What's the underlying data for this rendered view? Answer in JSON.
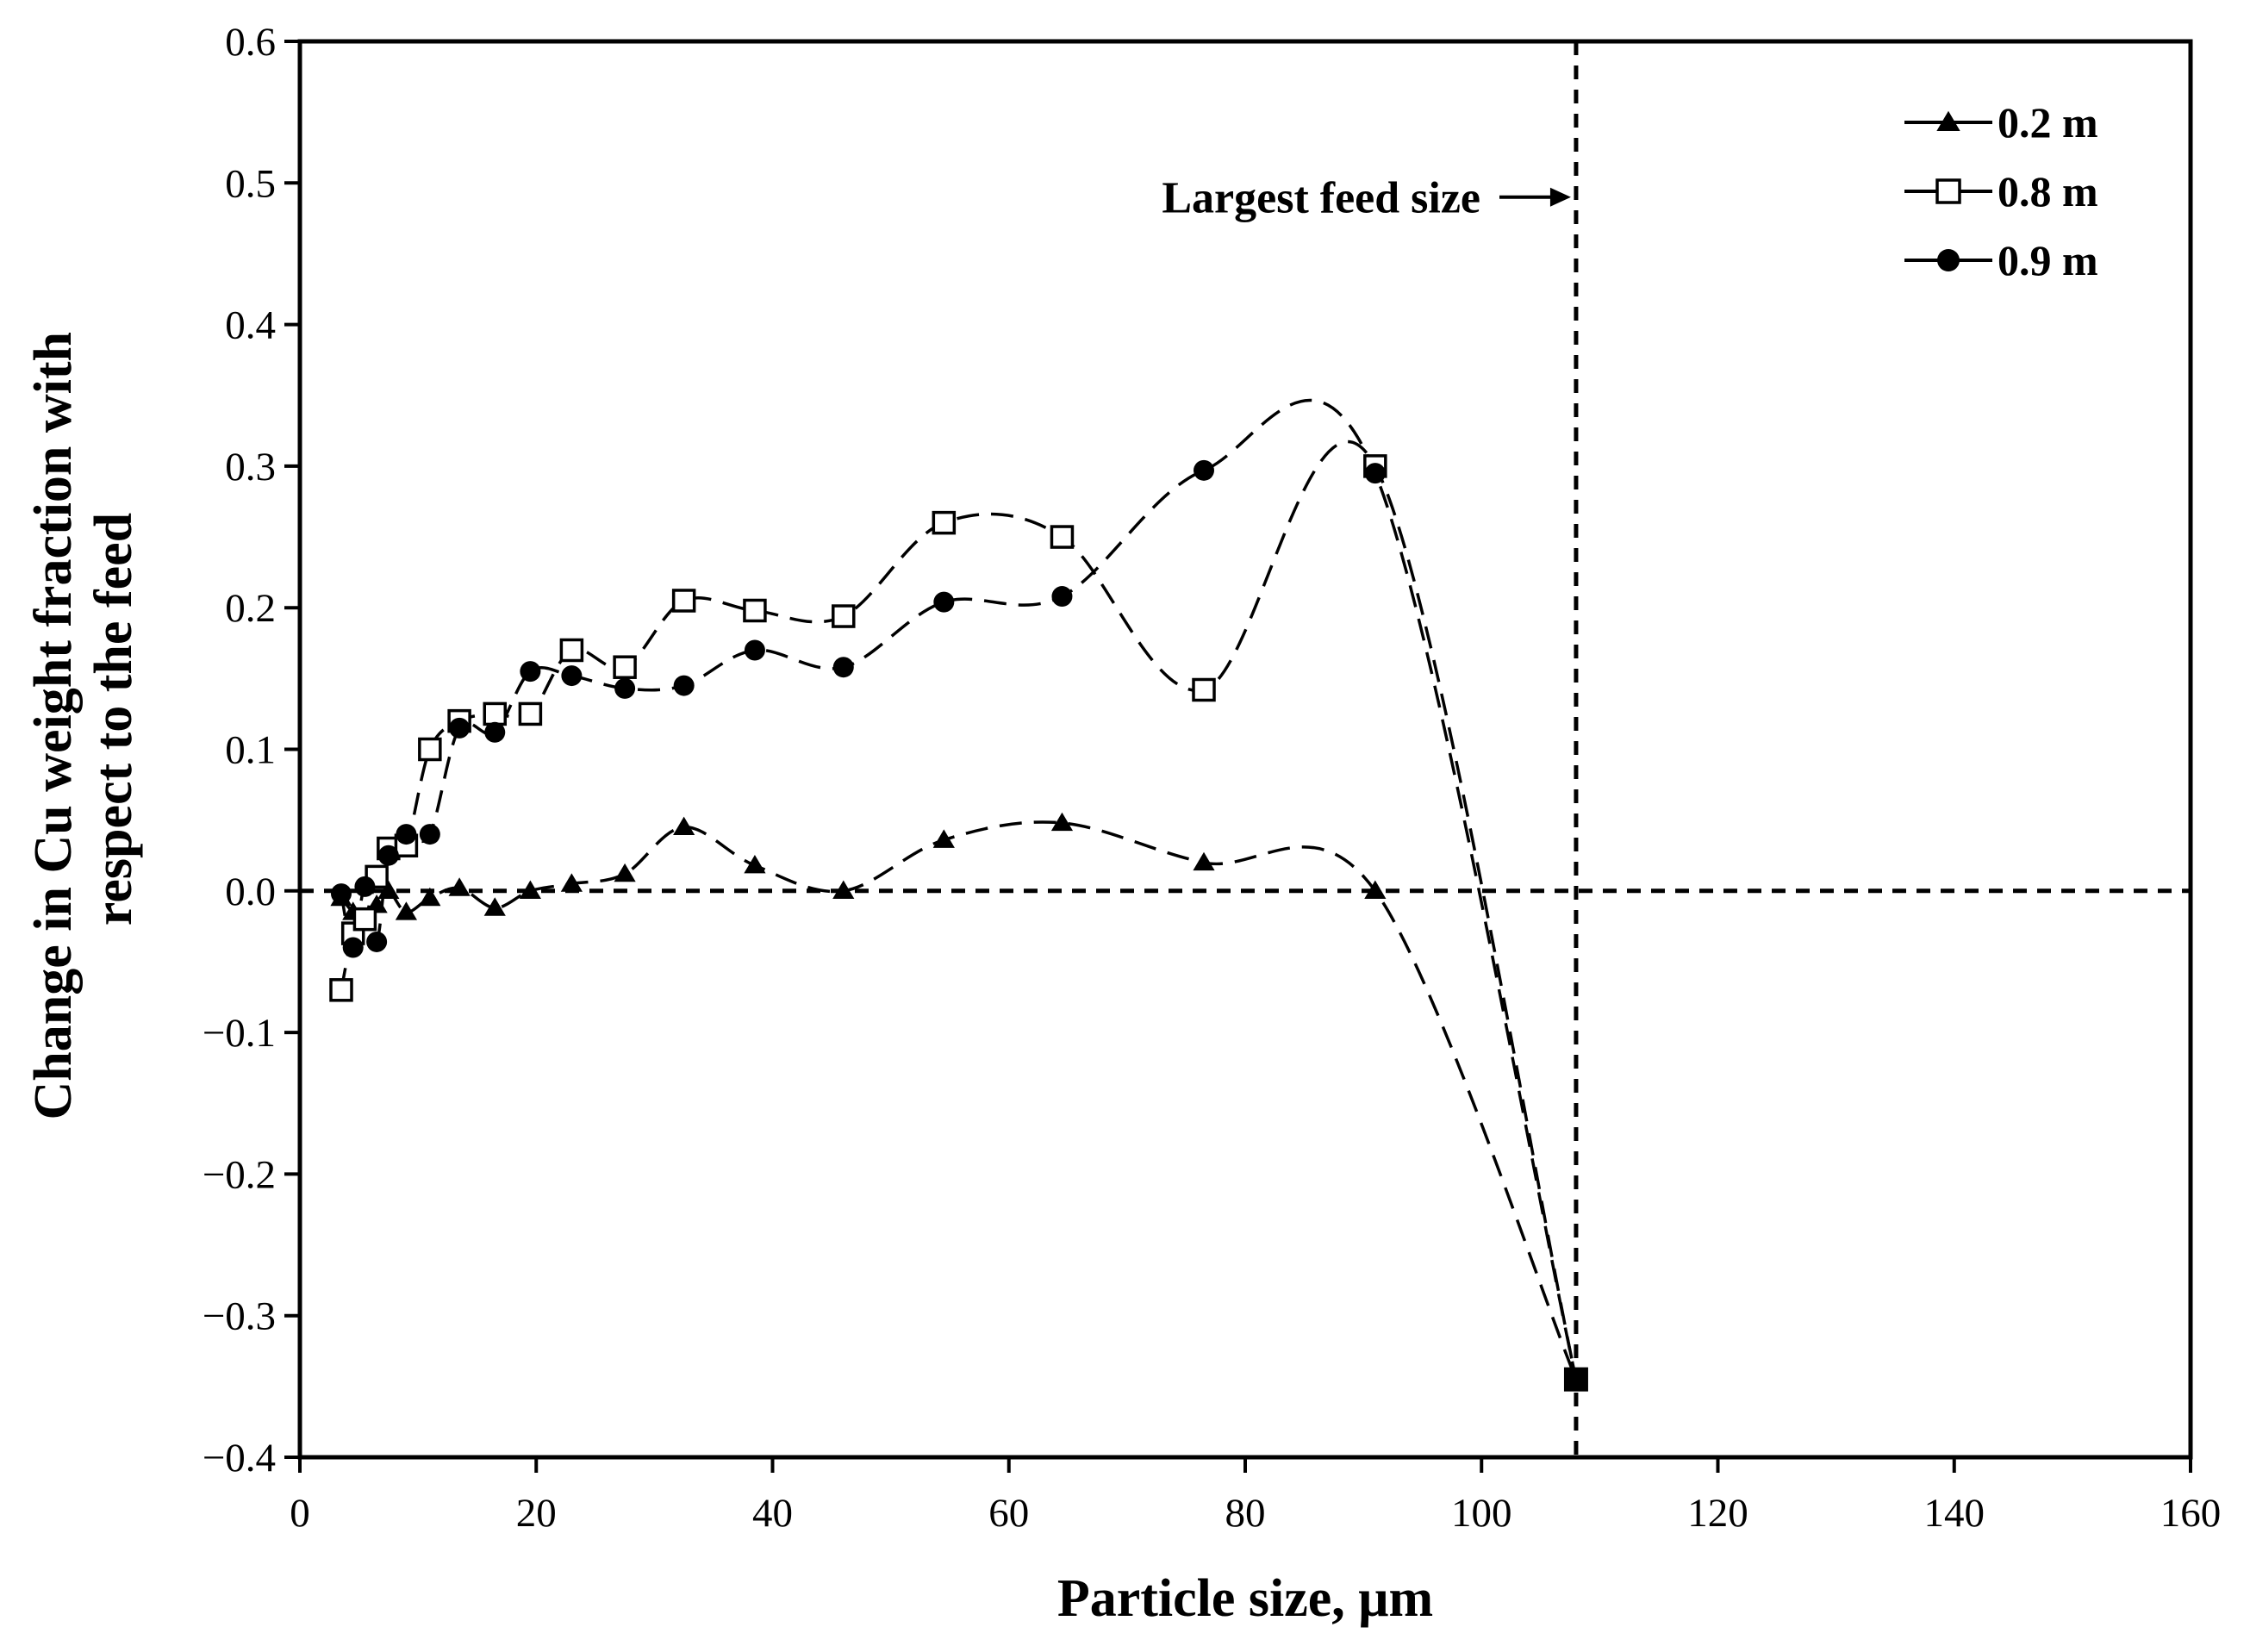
{
  "chart_data": {
    "type": "line",
    "title": "",
    "xlabel": "Particle size, μm",
    "ylabel": "Change in Cu weight fraction with respect to the feed",
    "ylabel_lines": [
      "Change in Cu weight fraction with",
      "respect to the feed"
    ],
    "xlim": [
      0,
      160
    ],
    "ylim": [
      -0.4,
      0.6
    ],
    "x_ticks": [
      0,
      20,
      40,
      60,
      80,
      100,
      120,
      140,
      160
    ],
    "x_tick_labels": [
      "0",
      "20",
      "40",
      "60",
      "80",
      "100",
      "120",
      "140",
      "160"
    ],
    "y_ticks": [
      -0.4,
      -0.3,
      -0.2,
      -0.1,
      0.0,
      0.1,
      0.2,
      0.3,
      0.4,
      0.5,
      0.6
    ],
    "y_tick_labels": [
      "−0.4",
      "−0.3",
      "−0.2",
      "−0.1",
      "0.0",
      "0.1",
      "0.2",
      "0.3",
      "0.4",
      "0.5",
      "0.6"
    ],
    "grid": false,
    "legend_position": "top-right",
    "reference_lines": {
      "horizontal_y": 0.0,
      "vertical_x": 108
    },
    "annotation": {
      "text": "Largest feed size",
      "points_to_x": 108,
      "y": 0.49
    },
    "series": [
      {
        "name": "0.2 m",
        "marker": "triangle-filled",
        "x": [
          3.5,
          4.5,
          5.5,
          6.5,
          7.5,
          9,
          11,
          13.5,
          16.5,
          19.5,
          23,
          27.5,
          32.5,
          38.5,
          46,
          54.5,
          64.5,
          76.5,
          91,
          108
        ],
        "y": [
          -0.005,
          -0.015,
          -0.02,
          -0.01,
          0.0,
          -0.015,
          -0.005,
          0.002,
          -0.012,
          0.0,
          0.005,
          0.012,
          0.045,
          0.018,
          0.0,
          0.036,
          0.048,
          0.02,
          0.0,
          -0.345
        ]
      },
      {
        "name": "0.8 m",
        "marker": "square-open",
        "x": [
          3.5,
          4.5,
          5.5,
          6.5,
          7.5,
          9,
          11,
          13.5,
          16.5,
          19.5,
          23,
          27.5,
          32.5,
          38.5,
          46,
          54.5,
          64.5,
          76.5,
          91,
          108
        ],
        "y": [
          -0.07,
          -0.03,
          -0.02,
          0.01,
          0.03,
          0.032,
          0.1,
          0.12,
          0.125,
          0.125,
          0.17,
          0.158,
          0.205,
          0.198,
          0.194,
          0.26,
          0.25,
          0.142,
          0.3,
          -0.345
        ]
      },
      {
        "name": "0.9 m",
        "marker": "circle-filled",
        "x": [
          3.5,
          4.5,
          5.5,
          6.5,
          7.5,
          9,
          11,
          13.5,
          16.5,
          19.5,
          23,
          27.5,
          32.5,
          38.5,
          46,
          54.5,
          64.5,
          76.5,
          91,
          108
        ],
        "y": [
          -0.002,
          -0.04,
          0.003,
          -0.036,
          0.025,
          0.04,
          0.04,
          0.115,
          0.112,
          0.155,
          0.152,
          0.143,
          0.145,
          0.17,
          0.158,
          0.204,
          0.208,
          0.297,
          0.295,
          -0.345
        ]
      }
    ]
  }
}
